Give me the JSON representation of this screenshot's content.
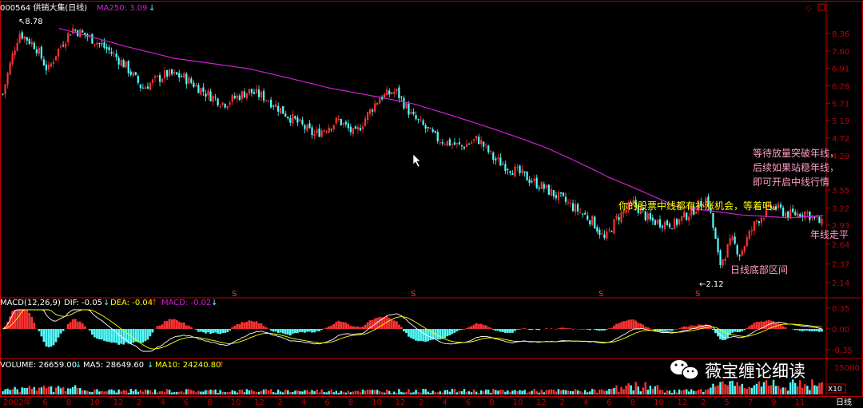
{
  "header": {
    "code_name": "000564 供销大集(日线)",
    "ma250_label": "MA250: 3.09"
  },
  "price_axis": {
    "ticks": [
      "8.36",
      "7.60",
      "6.91",
      "6.28",
      "5.71",
      "5.19",
      "4.72",
      "4.29",
      "3.55",
      "3.22",
      "2.93",
      "2.64",
      "2.37",
      "2.14"
    ]
  },
  "price_marks": {
    "high": "8.78",
    "low": "2.12"
  },
  "macd_header": {
    "macd_params": "MACD(12,26,9)",
    "dif": "DIF: -0.05",
    "dea": "DEA: -0.04",
    "macd": "MACD: -0.02"
  },
  "macd_axis": {
    "ticks": [
      "0.35",
      "0.00",
      "-0.35"
    ]
  },
  "volume_header": {
    "volume": "VOLUME: 26659.00",
    "ma5": "MA5: 28649.60",
    "ma10": "MA10: 24240.80"
  },
  "volume_axis": {
    "tick": "15000",
    "unit": "X10"
  },
  "time_axis": {
    "labels": [
      "2002年",
      "6",
      "8",
      "10",
      "12",
      "2",
      "4",
      "6",
      "8",
      "10",
      "12",
      "2",
      "4",
      "6",
      "8",
      "10",
      "12",
      "2",
      "4",
      "6",
      "8",
      "10",
      "12",
      "2",
      "4",
      "6",
      "8",
      "10",
      "12",
      "2",
      "5",
      "7",
      "9",
      "11"
    ],
    "period": "日线"
  },
  "annotations": {
    "wait_line1": "等待放量突破年线，",
    "wait_line2": "后续如果站稳年线，",
    "wait_line3": "即可开启中线行情",
    "rebound": "你的股票中线都有补涨机会，等着吧。",
    "flat": "年线走平",
    "bottom": "日线底部区间"
  },
  "watermark": {
    "text": "薇宝缠论细读",
    "logo": "wechat-logo"
  },
  "colors": {
    "up": "#ff3232",
    "down": "#54ffff",
    "ma250": "#d020d0",
    "dif": "#ffffff",
    "dea": "#ffff00",
    "axis": "#c00000",
    "annotation_pink": "#ff9ec8",
    "annotation_yellow": "#ffff00"
  },
  "chart_data": {
    "type": "candlestick",
    "ma250_anchors": [
      [
        0.07,
        8.6
      ],
      [
        0.1,
        8.3
      ],
      [
        0.15,
        7.8
      ],
      [
        0.21,
        7.3
      ],
      [
        0.3,
        6.9
      ],
      [
        0.4,
        6.2
      ],
      [
        0.5,
        5.7
      ],
      [
        0.58,
        5.1
      ],
      [
        0.66,
        4.5
      ],
      [
        0.74,
        3.8
      ],
      [
        0.82,
        3.25
      ],
      [
        0.9,
        3.1
      ],
      [
        0.96,
        3.05
      ],
      [
        1.0,
        3.09
      ]
    ],
    "price_anchors": [
      [
        0.0,
        6.0
      ],
      [
        0.02,
        8.4
      ],
      [
        0.04,
        7.8
      ],
      [
        0.055,
        6.8
      ],
      [
        0.065,
        7.5
      ],
      [
        0.085,
        8.6
      ],
      [
        0.11,
        8.1
      ],
      [
        0.13,
        7.6
      ],
      [
        0.15,
        7.0
      ],
      [
        0.17,
        6.2
      ],
      [
        0.2,
        6.7
      ],
      [
        0.22,
        6.6
      ],
      [
        0.25,
        6.0
      ],
      [
        0.27,
        5.7
      ],
      [
        0.3,
        6.1
      ],
      [
        0.32,
        5.9
      ],
      [
        0.35,
        5.3
      ],
      [
        0.38,
        4.8
      ],
      [
        0.41,
        5.2
      ],
      [
        0.43,
        4.8
      ],
      [
        0.46,
        5.9
      ],
      [
        0.48,
        6.1
      ],
      [
        0.5,
        5.3
      ],
      [
        0.53,
        4.7
      ],
      [
        0.56,
        4.5
      ],
      [
        0.58,
        4.7
      ],
      [
        0.6,
        4.2
      ],
      [
        0.63,
        3.9
      ],
      [
        0.66,
        3.6
      ],
      [
        0.69,
        3.3
      ],
      [
        0.72,
        3.0
      ],
      [
        0.735,
        2.7
      ],
      [
        0.75,
        3.05
      ],
      [
        0.77,
        3.3
      ],
      [
        0.79,
        3.0
      ],
      [
        0.82,
        2.95
      ],
      [
        0.84,
        3.15
      ],
      [
        0.86,
        3.4
      ],
      [
        0.875,
        2.35
      ],
      [
        0.89,
        2.7
      ],
      [
        0.9,
        2.5
      ],
      [
        0.92,
        3.0
      ],
      [
        0.94,
        3.25
      ],
      [
        0.96,
        3.1
      ],
      [
        0.98,
        3.15
      ],
      [
        1.0,
        2.95
      ]
    ]
  }
}
